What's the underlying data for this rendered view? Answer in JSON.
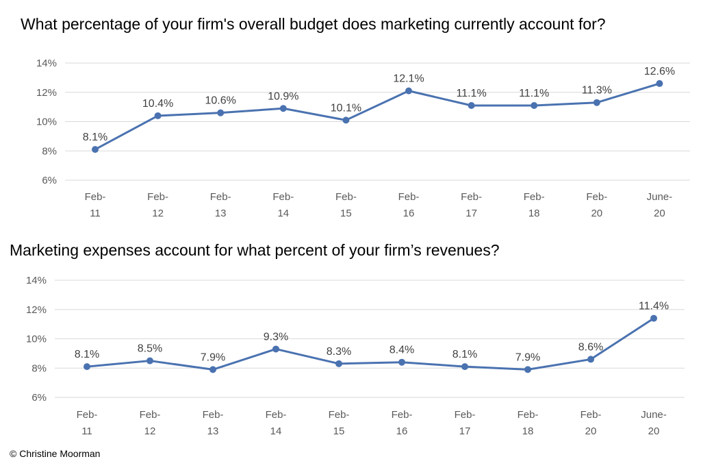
{
  "colors": {
    "series": "#4a72b0"
  },
  "chart_data": [
    {
      "type": "line",
      "title": "What percentage of your firm's overall budget does marketing currently account for?",
      "categories": [
        [
          "Feb-",
          "11"
        ],
        [
          "Feb-",
          "12"
        ],
        [
          "Feb-",
          "13"
        ],
        [
          "Feb-",
          "14"
        ],
        [
          "Feb-",
          "15"
        ],
        [
          "Feb-",
          "16"
        ],
        [
          "Feb-",
          "17"
        ],
        [
          "Feb-",
          "18"
        ],
        [
          "Feb-",
          "20"
        ],
        [
          "June-",
          "20"
        ]
      ],
      "series": [
        {
          "values": [
            8.1,
            10.4,
            10.6,
            10.9,
            10.1,
            12.1,
            11.1,
            11.1,
            11.3,
            12.6
          ],
          "labels": [
            "8.1%",
            "10.4%",
            "10.6%",
            "10.9%",
            "10.1%",
            "12.1%",
            "11.1%",
            "11.1%",
            "11.3%",
            "12.6%"
          ]
        }
      ],
      "ylim": [
        6,
        14
      ],
      "yticks": [
        6,
        8,
        10,
        12,
        14
      ],
      "ytick_labels": [
        "6%",
        "8%",
        "10%",
        "12%",
        "14%"
      ],
      "grid": true
    },
    {
      "type": "line",
      "title": "Marketing expenses account for what percent of your firm’s revenues?",
      "categories": [
        [
          "Feb-",
          "11"
        ],
        [
          "Feb-",
          "12"
        ],
        [
          "Feb-",
          "13"
        ],
        [
          "Feb-",
          "14"
        ],
        [
          "Feb-",
          "15"
        ],
        [
          "Feb-",
          "16"
        ],
        [
          "Feb-",
          "17"
        ],
        [
          "Feb-",
          "18"
        ],
        [
          "Feb-",
          "20"
        ],
        [
          "June-",
          "20"
        ]
      ],
      "series": [
        {
          "values": [
            8.1,
            8.5,
            7.9,
            9.3,
            8.3,
            8.4,
            8.1,
            7.9,
            8.6,
            11.4
          ],
          "labels": [
            "8.1%",
            "8.5%",
            "7.9%",
            "9.3%",
            "8.3%",
            "8.4%",
            "8.1%",
            "7.9%",
            "8.6%",
            "11.4%"
          ]
        }
      ],
      "ylim": [
        6,
        14
      ],
      "yticks": [
        6,
        8,
        10,
        12,
        14
      ],
      "ytick_labels": [
        "6%",
        "8%",
        "10%",
        "12%",
        "14%"
      ],
      "grid": true
    }
  ],
  "footer": {
    "copyright": "© Christine Moorman"
  }
}
